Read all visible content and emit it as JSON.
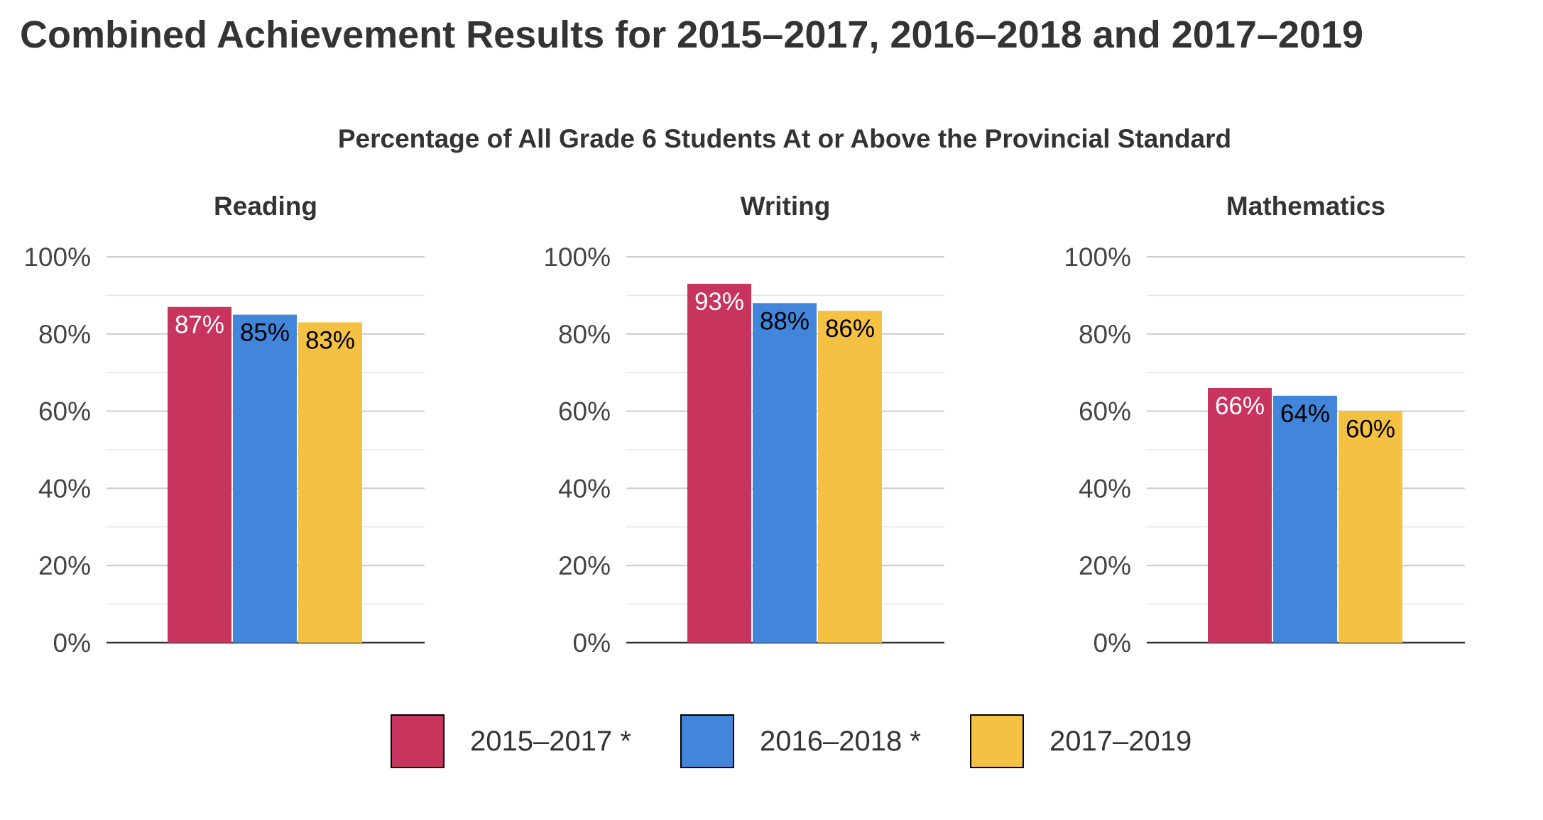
{
  "page": {
    "title": "Combined Achievement Results for 2015–2017, 2016–2018 and 2017–2019"
  },
  "chart_data": {
    "type": "bar",
    "subtitle": "Percentage of All Grade 6 Students At or Above the Provincial Standard",
    "series_names": [
      "2015–2017 *",
      "2016–2018 *",
      "2017–2019"
    ],
    "colors": [
      "#c7345e",
      "#4286dc",
      "#f5c143"
    ],
    "value_label_colors": [
      "#ffffff",
      "#000000",
      "#000000"
    ],
    "ylim": [
      0,
      100
    ],
    "yticks": [
      0,
      20,
      40,
      60,
      80,
      100
    ],
    "ytick_labels": [
      "0%",
      "20%",
      "40%",
      "60%",
      "80%",
      "100%"
    ],
    "minor_gridlines": true,
    "legend_position": "bottom",
    "panels": [
      {
        "title": "Reading",
        "values": [
          87,
          85,
          83
        ],
        "labels": [
          "87%",
          "85%",
          "83%"
        ]
      },
      {
        "title": "Writing",
        "values": [
          93,
          88,
          86
        ],
        "labels": [
          "93%",
          "88%",
          "86%"
        ]
      },
      {
        "title": "Mathematics",
        "values": [
          66,
          64,
          60
        ],
        "labels": [
          "66%",
          "64%",
          "60%"
        ]
      }
    ]
  }
}
